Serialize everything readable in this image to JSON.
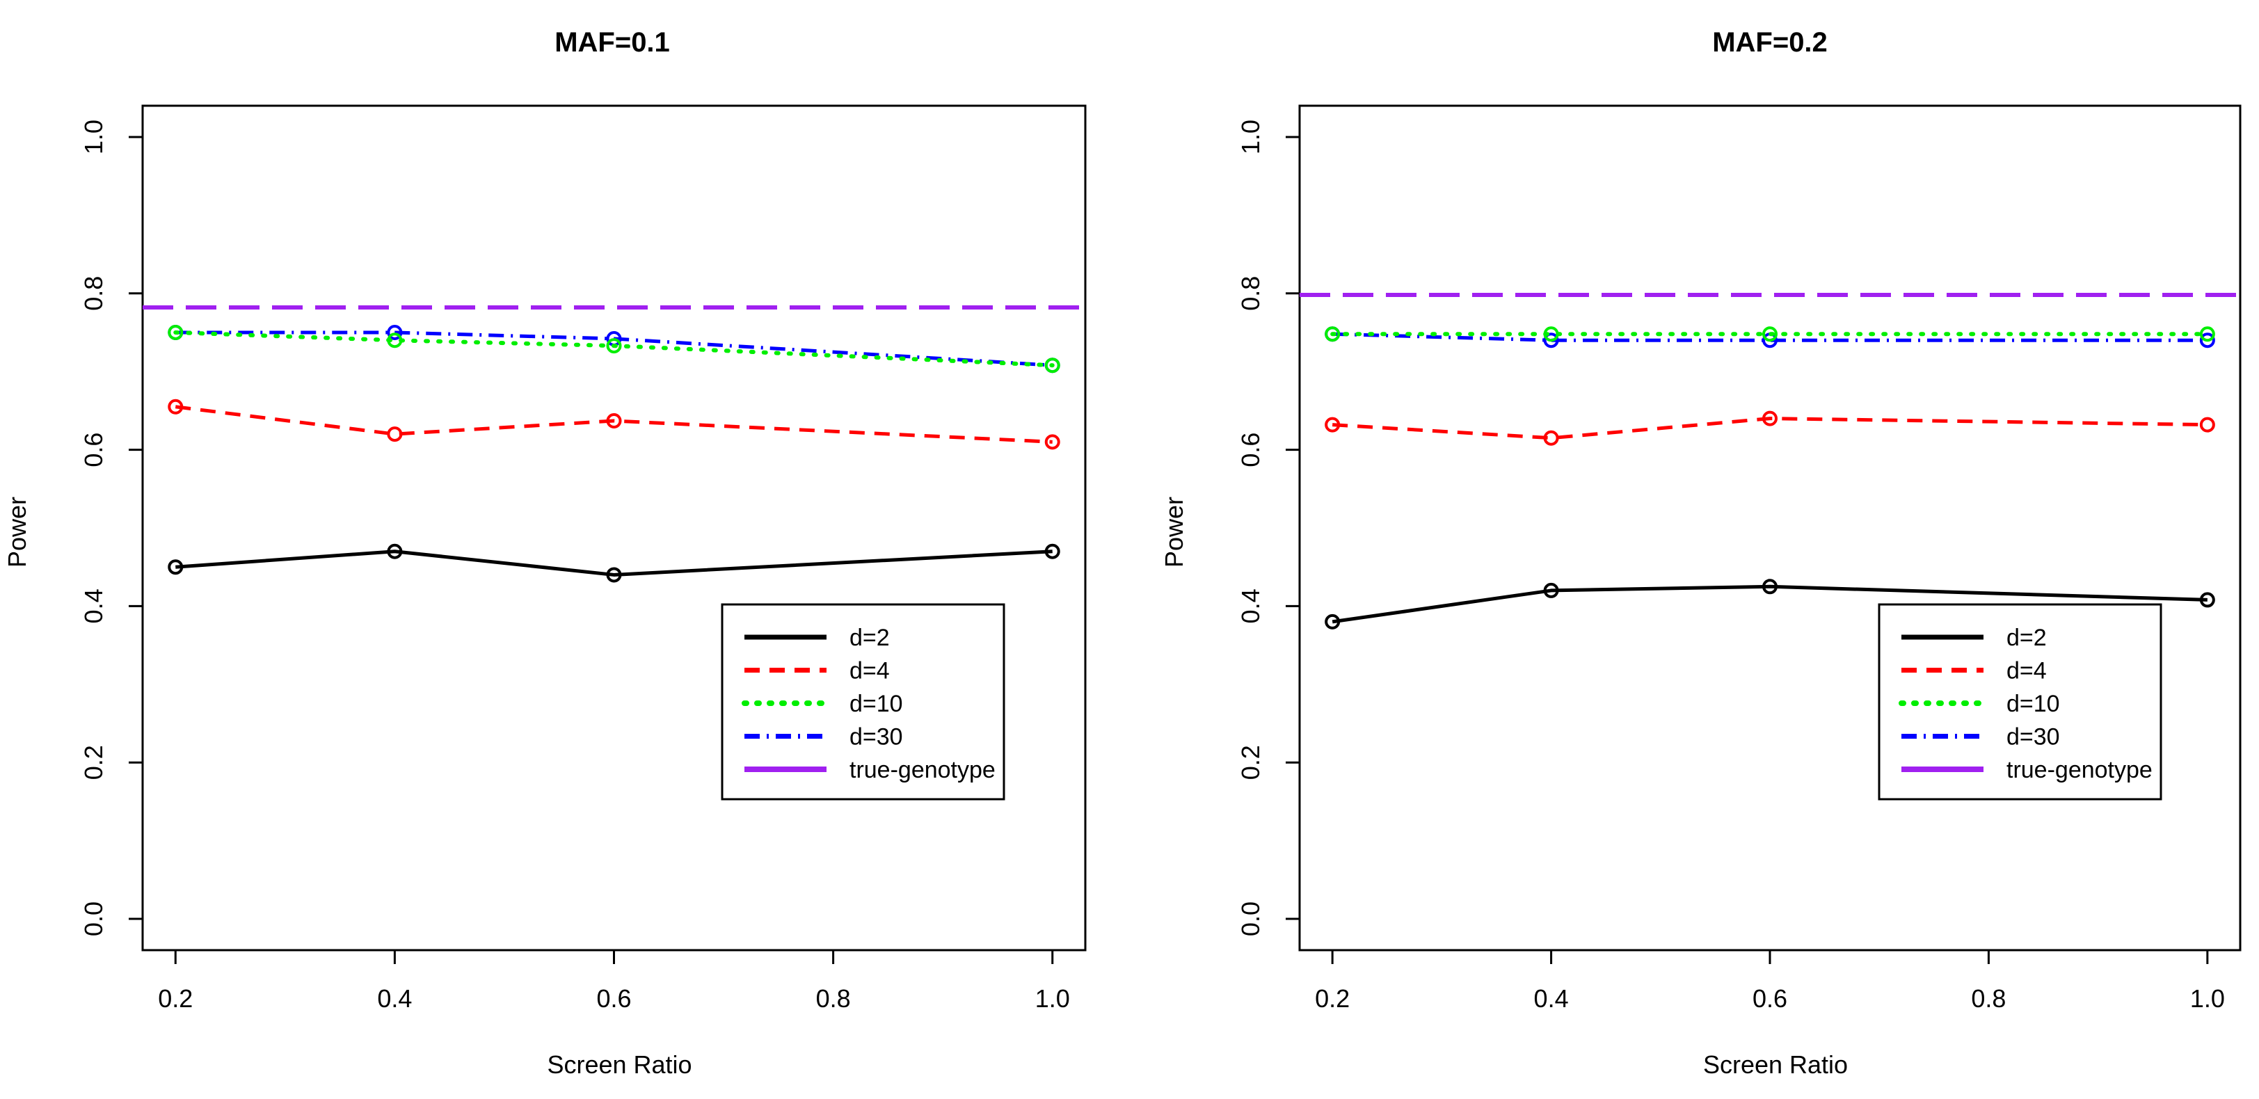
{
  "colors": {
    "d2": "#000000",
    "d4": "#ff0000",
    "d10": "#00ee00",
    "d30": "#0000ff",
    "true_genotype": "#a020f0"
  },
  "chart_data": [
    {
      "type": "line",
      "title": "MAF=0.1",
      "xlabel": "Screen Ratio",
      "ylabel": "Power",
      "x": [
        0.2,
        0.4,
        0.6,
        1.0
      ],
      "xticks": [
        "0.2",
        "0.4",
        "0.6",
        "0.8",
        "1.0"
      ],
      "yticks": [
        "0.0",
        "0.2",
        "0.4",
        "0.6",
        "0.8",
        "1.0"
      ],
      "xlim": [
        0.17,
        1.03
      ],
      "ylim": [
        -0.04,
        1.04
      ],
      "legend_position": "bottom-right",
      "series": [
        {
          "name": "d=2",
          "values": [
            0.45,
            0.47,
            0.44,
            0.47
          ]
        },
        {
          "name": "d=4",
          "values": [
            0.655,
            0.62,
            0.637,
            0.61
          ]
        },
        {
          "name": "d=10",
          "values": [
            0.75,
            0.74,
            0.733,
            0.708
          ]
        },
        {
          "name": "d=30",
          "values": [
            0.75,
            0.75,
            0.742,
            0.708
          ]
        }
      ],
      "reference_line": {
        "name": "true-genotype",
        "value": 0.782
      }
    },
    {
      "type": "line",
      "title": "MAF=0.2",
      "xlabel": "Screen Ratio",
      "ylabel": "Power",
      "x": [
        0.2,
        0.4,
        0.6,
        1.0
      ],
      "xticks": [
        "0.2",
        "0.4",
        "0.6",
        "0.8",
        "1.0"
      ],
      "yticks": [
        "0.0",
        "0.2",
        "0.4",
        "0.6",
        "0.8",
        "1.0"
      ],
      "xlim": [
        0.17,
        1.03
      ],
      "ylim": [
        -0.04,
        1.04
      ],
      "legend_position": "bottom-right",
      "series": [
        {
          "name": "d=2",
          "values": [
            0.38,
            0.42,
            0.425,
            0.408
          ]
        },
        {
          "name": "d=4",
          "values": [
            0.632,
            0.615,
            0.64,
            0.632
          ]
        },
        {
          "name": "d=10",
          "values": [
            0.748,
            0.748,
            0.748,
            0.748
          ]
        },
        {
          "name": "d=30",
          "values": [
            0.748,
            0.74,
            0.74,
            0.74
          ]
        }
      ],
      "reference_line": {
        "name": "true-genotype",
        "value": 0.798
      }
    }
  ]
}
